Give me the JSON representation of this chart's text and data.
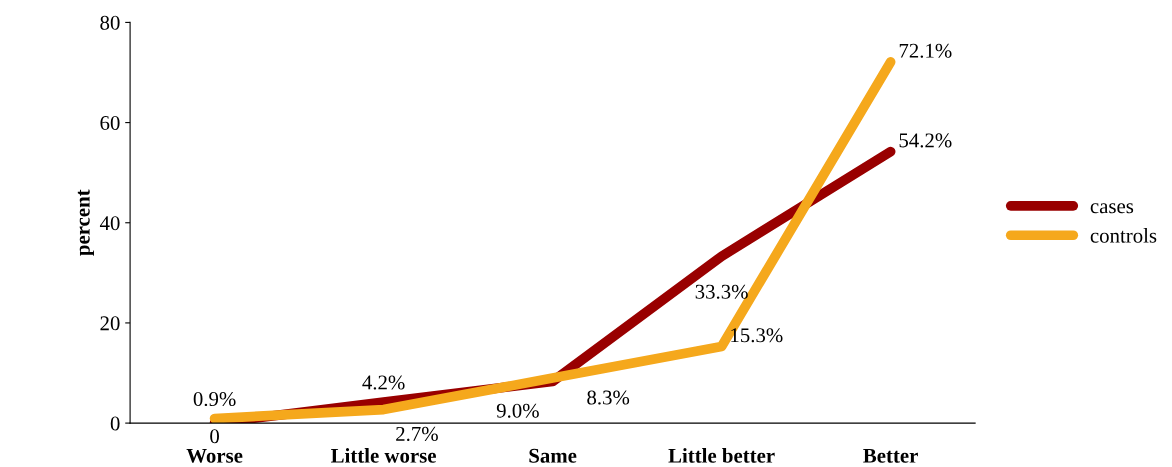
{
  "chart_data": {
    "type": "line",
    "ylabel": "percent",
    "categories": [
      "Worse",
      "Little worse",
      "Same",
      "Little better",
      "Better"
    ],
    "series": [
      {
        "name": "cases",
        "color": "#990000",
        "values": [
          0,
          4.2,
          8.3,
          33.3,
          54.2
        ],
        "value_labels": [
          "0",
          "4.2%",
          "8.3%",
          "33.3%",
          "54.2%"
        ]
      },
      {
        "name": "controls",
        "color": "#f5a81c",
        "values": [
          0.9,
          2.7,
          9.0,
          15.3,
          72.1
        ],
        "value_labels": [
          "0.9%",
          "2.7%",
          "9.0%",
          "15.3%",
          "72.1%"
        ]
      }
    ],
    "ylim": [
      0,
      80
    ],
    "yticks": [
      0,
      20,
      40,
      60,
      80
    ],
    "grid": false,
    "legend": "right",
    "marker": "none",
    "line_style": "solid"
  }
}
